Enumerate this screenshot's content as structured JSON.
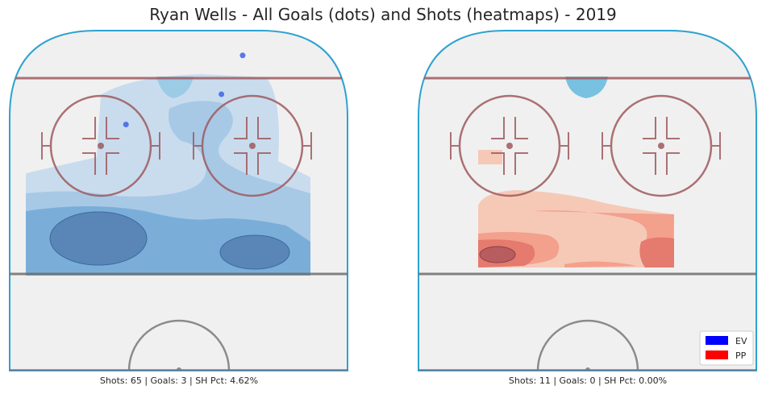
{
  "chart_data": {
    "type": "heatmap",
    "title": "Ryan Wells - All Goals (dots) and Shots (heatmaps) - 2019",
    "panels": [
      {
        "name": "EV",
        "color": "#1f6fd1",
        "caption": "Shots: 65 | Goals: 3 | SH Pct: 4.62%",
        "shots": 65,
        "goals": 3,
        "sh_pct": "4.62%",
        "goal_dots": [
          {
            "x": 6,
            "y": 73
          },
          {
            "x": 4,
            "y": 64
          },
          {
            "x": -5,
            "y": 57
          }
        ]
      },
      {
        "name": "PP",
        "color": "#e8433a",
        "caption": "Shots: 11 | Goals: 0 | SH Pct: 0.00%",
        "shots": 11,
        "goals": 0,
        "sh_pct": "0.00%",
        "goal_dots": []
      }
    ],
    "legend": {
      "placement": "bottom-right",
      "entries": [
        {
          "label": "EV",
          "color": "#0000ff"
        },
        {
          "label": "PP",
          "color": "#ff0000"
        }
      ]
    }
  }
}
